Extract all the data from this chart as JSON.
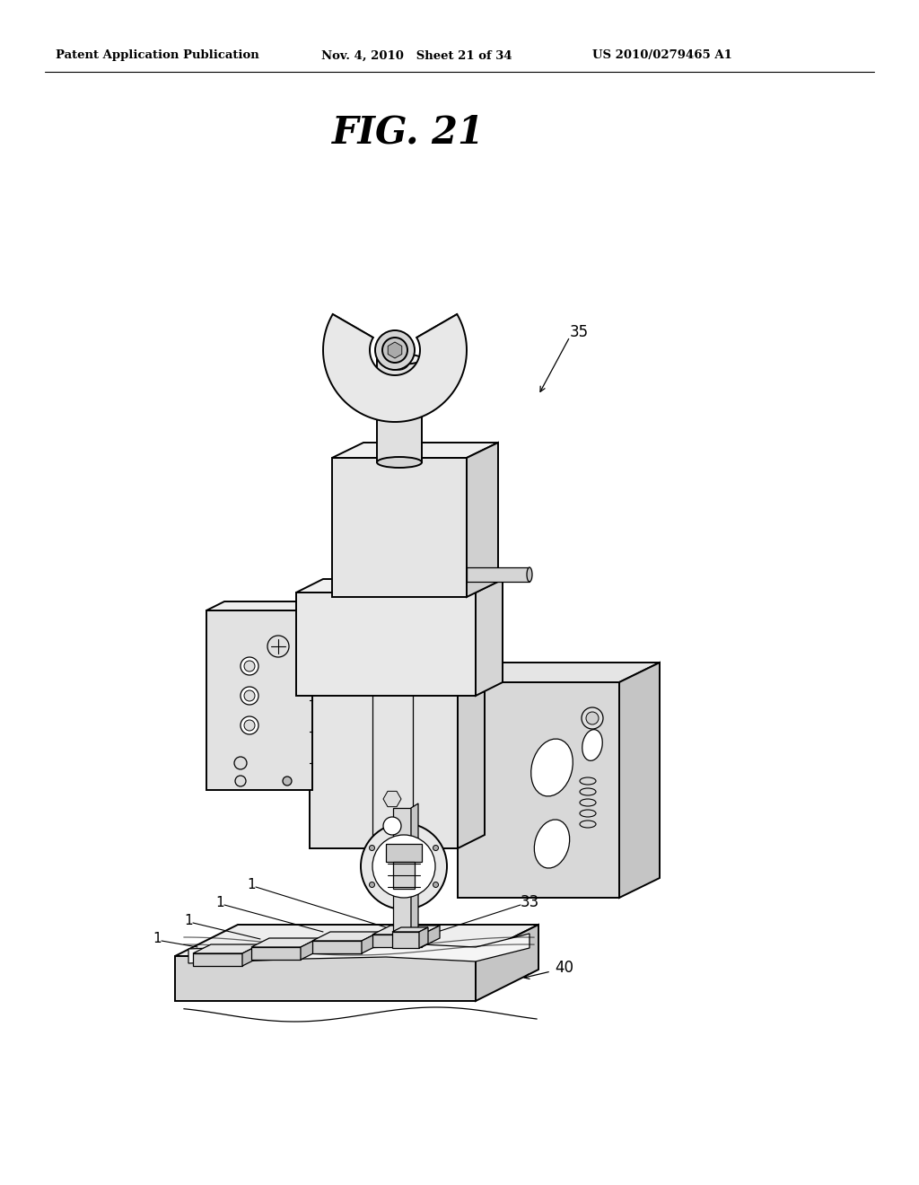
{
  "background_color": "#ffffff",
  "header_left": "Patent Application Publication",
  "header_mid": "Nov. 4, 2010   Sheet 21 of 34",
  "header_right": "US 2010/0279465 A1",
  "figure_label": "FIG. 21",
  "text_color": "#000000",
  "line_color": "#000000",
  "fill_light": "#f0f0f0",
  "fill_mid": "#d8d8d8",
  "fill_dark": "#b8b8b8",
  "lw_main": 1.4,
  "lw_thin": 0.9,
  "lw_thick": 2.0
}
